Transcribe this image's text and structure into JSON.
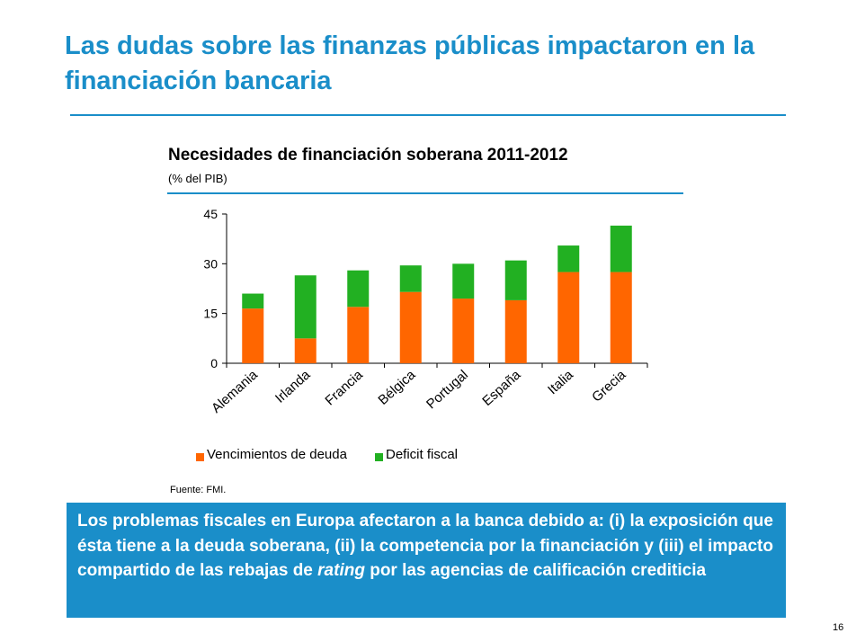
{
  "slide": {
    "title": "Las dudas sobre las finanzas públicas impactaron en la financiación bancaria",
    "page_number": "16"
  },
  "chart_data": {
    "type": "bar",
    "stacked": true,
    "title": "Necesidades de financiación soberana 2011-2012",
    "subtitle": "(% del PIB)",
    "categories": [
      "Alemania",
      "Irlanda",
      "Francia",
      "Bélgica",
      "Portugal",
      "España",
      "Italia",
      "Grecia"
    ],
    "series": [
      {
        "name": "Vencimientos de deuda",
        "color": "#ff6600",
        "values": [
          16.5,
          7.5,
          17,
          21.5,
          19.5,
          19,
          27.5,
          27.5
        ]
      },
      {
        "name": "Deficit fiscal",
        "color": "#22b022",
        "values": [
          4.5,
          19,
          11,
          8,
          10.5,
          12,
          8,
          14
        ]
      }
    ],
    "yticks": [
      0,
      15,
      30,
      45
    ],
    "ylim": [
      0,
      45
    ],
    "grid": false,
    "legend": "bottom",
    "source": "Fuente: FMI."
  },
  "callout": {
    "text_before": "Los problemas fiscales en Europa afectaron a la banca debido a: (i) la exposición que ésta tiene a la deuda soberana, (ii) la competencia por la financiación y (iii) el impacto compartido de las rebajas de ",
    "emphasis": "rating",
    "text_after": " por las agencias de calificación crediticia"
  },
  "colors": {
    "accent": "#1a8ec9",
    "debt": "#ff6600",
    "deficit": "#22b022"
  }
}
